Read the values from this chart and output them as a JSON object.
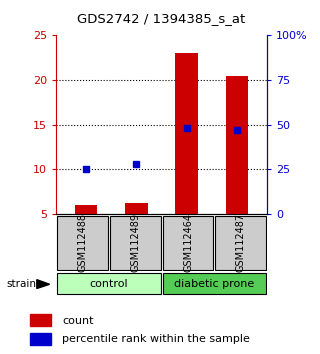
{
  "title": "GDS2742 / 1394385_s_at",
  "samples": [
    "GSM112488",
    "GSM112489",
    "GSM112464",
    "GSM112487"
  ],
  "red_values": [
    6.0,
    6.2,
    23.0,
    20.5
  ],
  "blue_values_pct": [
    25,
    28,
    48,
    47
  ],
  "red_color": "#cc0000",
  "blue_color": "#0000cc",
  "left_ylim": [
    5,
    25
  ],
  "right_ylim": [
    0,
    100
  ],
  "left_yticks": [
    5,
    10,
    15,
    20,
    25
  ],
  "right_yticks": [
    0,
    25,
    50,
    75,
    100
  ],
  "right_yticklabels": [
    "0",
    "25",
    "50",
    "75",
    "100%"
  ],
  "sample_box_color": "#cccccc",
  "control_color": "#bbffbb",
  "diabetic_color": "#55cc55",
  "background_color": "#ffffff"
}
